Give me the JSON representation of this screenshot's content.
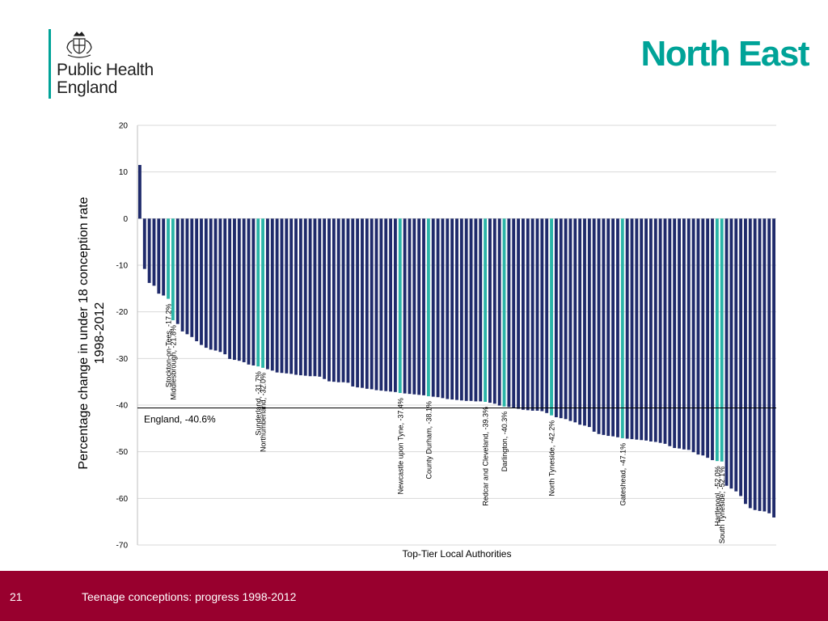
{
  "header": {
    "brand_line1": "Public Health",
    "brand_line2": "England",
    "slide_title": "North East"
  },
  "footer": {
    "page_number": "21",
    "text": "Teenage conceptions: progress 1998-2012"
  },
  "colors": {
    "bar": "#1f2a6b",
    "highlight": "#2bb5a8",
    "brand": "#00a398",
    "footer": "#98002e"
  },
  "chart_data": {
    "type": "bar",
    "xlabel": "Top-Tier Local Authorities",
    "ylabel": [
      "Percentage change in under 18 conception rate",
      "1998-2012"
    ],
    "ylim": [
      -70,
      20
    ],
    "yticks": [
      20,
      10,
      0,
      -10,
      -20,
      -30,
      -40,
      -50,
      -60,
      -70
    ],
    "grid": true,
    "reference": {
      "label": "England, -40.6%",
      "value": -40.6
    },
    "values": [
      11.5,
      -10.8,
      -13.8,
      -14.4,
      -16.1,
      -16.5,
      -17.2,
      -21.8,
      -22.6,
      -24.2,
      -24.8,
      -25.4,
      -26.3,
      -27.1,
      -27.7,
      -28.1,
      -28.3,
      -28.6,
      -29.1,
      -30.1,
      -30.3,
      -30.5,
      -30.8,
      -31.3,
      -31.5,
      -31.7,
      -32.0,
      -32.3,
      -32.6,
      -33.0,
      -33.1,
      -33.2,
      -33.3,
      -33.5,
      -33.6,
      -33.7,
      -33.8,
      -33.8,
      -33.9,
      -34.4,
      -34.9,
      -35.0,
      -35.1,
      -35.1,
      -35.2,
      -36.0,
      -36.2,
      -36.3,
      -36.5,
      -36.6,
      -36.8,
      -36.9,
      -37.0,
      -37.1,
      -37.2,
      -37.4,
      -37.5,
      -37.6,
      -37.7,
      -37.8,
      -37.9,
      -38.1,
      -38.2,
      -38.3,
      -38.5,
      -38.7,
      -38.8,
      -38.9,
      -39.0,
      -39.1,
      -39.1,
      -39.2,
      -39.2,
      -39.3,
      -39.5,
      -39.7,
      -40.1,
      -40.3,
      -40.4,
      -40.6,
      -40.8,
      -41.0,
      -41.1,
      -41.2,
      -41.2,
      -41.3,
      -41.7,
      -42.2,
      -42.6,
      -42.8,
      -43.0,
      -43.4,
      -43.7,
      -44.2,
      -44.4,
      -44.7,
      -45.7,
      -46.2,
      -46.4,
      -46.6,
      -46.7,
      -46.9,
      -47.1,
      -47.2,
      -47.3,
      -47.4,
      -47.5,
      -47.6,
      -47.8,
      -47.9,
      -48.1,
      -48.3,
      -48.8,
      -49.2,
      -49.3,
      -49.5,
      -49.6,
      -50.1,
      -50.6,
      -50.8,
      -51.3,
      -51.8,
      -52.0,
      -52.1,
      -57.3,
      -57.9,
      -58.5,
      -59.5,
      -61.2,
      -62.1,
      -62.5,
      -62.7,
      -62.8,
      -63.2,
      -64.1
    ],
    "highlights": [
      {
        "index": 6,
        "label": "Stockton-on-Tees, -17.2%",
        "value": -17.2
      },
      {
        "index": 7,
        "label": "Middlesbrough, -21.8%",
        "value": -21.8
      },
      {
        "index": 25,
        "label": "Sunderland, -31.7%",
        "value": -31.7
      },
      {
        "index": 26,
        "label": "Northumberland, -32.0%",
        "value": -32.0
      },
      {
        "index": 55,
        "label": "Newcastle upon Tyne, -37.4%",
        "value": -37.4
      },
      {
        "index": 61,
        "label": "County Durham, -38.1%",
        "value": -38.1
      },
      {
        "index": 73,
        "label": "Redcar and Cleveland, -39.3%",
        "value": -39.3
      },
      {
        "index": 77,
        "label": "Darlington, -40.3%",
        "value": -40.3
      },
      {
        "index": 87,
        "label": "North Tyneside, -42.2%",
        "value": -42.2
      },
      {
        "index": 102,
        "label": "Gateshead, -47.1%",
        "value": -47.1
      },
      {
        "index": 122,
        "label": "Hartlepool, -52.0%",
        "value": -52.0
      },
      {
        "index": 123,
        "label": "South Tyneside, -52.1%",
        "value": -52.1
      }
    ]
  }
}
